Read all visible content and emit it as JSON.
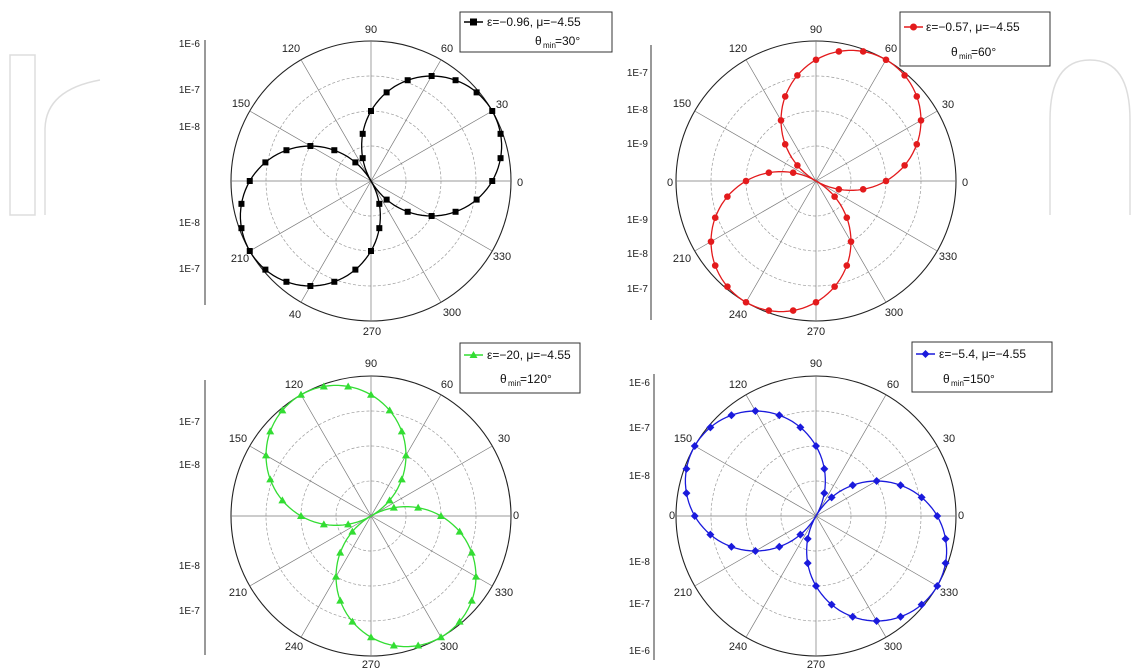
{
  "chart_data": [
    {
      "type": "line",
      "subtype": "polar",
      "theta_labels": [
        "90",
        "120",
        "150",
        "0",
        "210",
        "40",
        "270",
        "300",
        "330",
        "30",
        "60"
      ],
      "radial_ticks_upper": [
        "1E-6",
        "1E-7",
        "1E-8"
      ],
      "radial_ticks_lower": [
        "1E-8",
        "1E-7"
      ],
      "series": [
        {
          "name": "ε=−0.96, μ=−4.55",
          "color": "#000000",
          "marker": "square"
        }
      ],
      "legend_note": {
        "prefix": "θ",
        "sub": "min",
        "value": "=30°"
      },
      "legend": "top-right",
      "theta_min_deg": 30,
      "r_max_data": 1
    },
    {
      "type": "line",
      "subtype": "polar",
      "theta_labels": [
        "90",
        "120",
        "150",
        "0",
        "210",
        "240",
        "270",
        "300",
        "330",
        "30",
        "60"
      ],
      "radial_ticks_upper": [
        "1E-7",
        "1E-8",
        "1E-9"
      ],
      "radial_ticks_lower": [
        "1E-9",
        "1E-8",
        "1E-7"
      ],
      "series": [
        {
          "name": "ε=−0.57, μ=−4.55",
          "color": "#e31a1c",
          "marker": "circle"
        }
      ],
      "legend_note": {
        "prefix": "θ",
        "sub": "min",
        "value": "=60°"
      },
      "legend": "top-right",
      "theta_min_deg": 60,
      "r_max_data": 1
    },
    {
      "type": "line",
      "subtype": "polar",
      "theta_labels": [
        "90",
        "120",
        "150",
        "0",
        "210",
        "240",
        "270",
        "300",
        "330",
        "30",
        "60"
      ],
      "radial_ticks_upper": [
        "1E-7",
        "1E-8"
      ],
      "radial_ticks_lower": [
        "1E-8",
        "1E-7"
      ],
      "series": [
        {
          "name": "ε=−20, μ=−4.55",
          "color": "#33dd33",
          "marker": "triangle"
        }
      ],
      "legend_note": {
        "prefix": "θ",
        "sub": "min",
        "value": "=120°"
      },
      "legend": "top-right",
      "theta_min_deg": 120,
      "r_max_data": 1
    },
    {
      "type": "line",
      "subtype": "polar",
      "theta_labels": [
        "90",
        "120",
        "150",
        "0",
        "210",
        "240",
        "270",
        "300",
        "330",
        "30",
        "60"
      ],
      "radial_ticks_upper": [
        "1E-6",
        "1E-7",
        "1E-8"
      ],
      "radial_ticks_lower": [
        "1E-8",
        "1E-7",
        "1E-6"
      ],
      "series": [
        {
          "name": "ε=−5.4, μ=−4.55",
          "color": "#1a1adc",
          "marker": "diamond"
        }
      ],
      "legend_note": {
        "prefix": "θ",
        "sub": "min",
        "value": "=150°"
      },
      "legend": "top-right",
      "theta_min_deg": 150,
      "r_max_data": 1
    }
  ],
  "left_partial_labels": [
    "",
    "",
    "",
    "0",
    "",
    ""
  ]
}
